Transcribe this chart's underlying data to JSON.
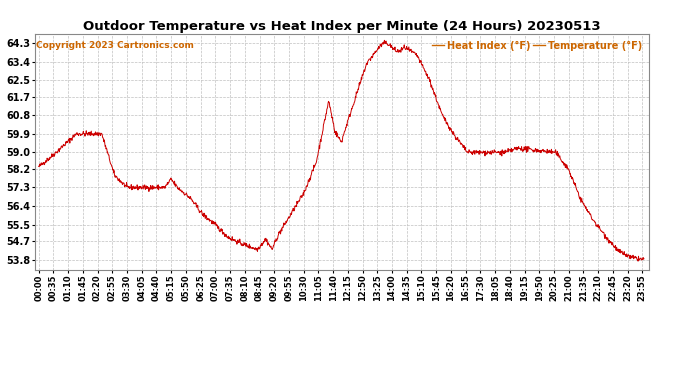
{
  "title": "Outdoor Temperature vs Heat Index per Minute (24 Hours) 20230513",
  "copyright": "Copyright 2023 Cartronics.com",
  "legend_labels": [
    "Heat Index (°F)",
    "Temperature (°F)"
  ],
  "line_color": "#cc0000",
  "background_color": "#ffffff",
  "grid_color": "#c0c0c0",
  "title_color": "#000000",
  "legend_color": "#cc6600",
  "copyright_color": "#cc6600",
  "yticks": [
    53.8,
    54.7,
    55.5,
    56.4,
    57.3,
    58.2,
    59.0,
    59.9,
    60.8,
    61.7,
    62.5,
    63.4,
    64.3
  ],
  "ylim": [
    53.3,
    64.75
  ],
  "xtick_step": 35,
  "total_minutes": 1440
}
